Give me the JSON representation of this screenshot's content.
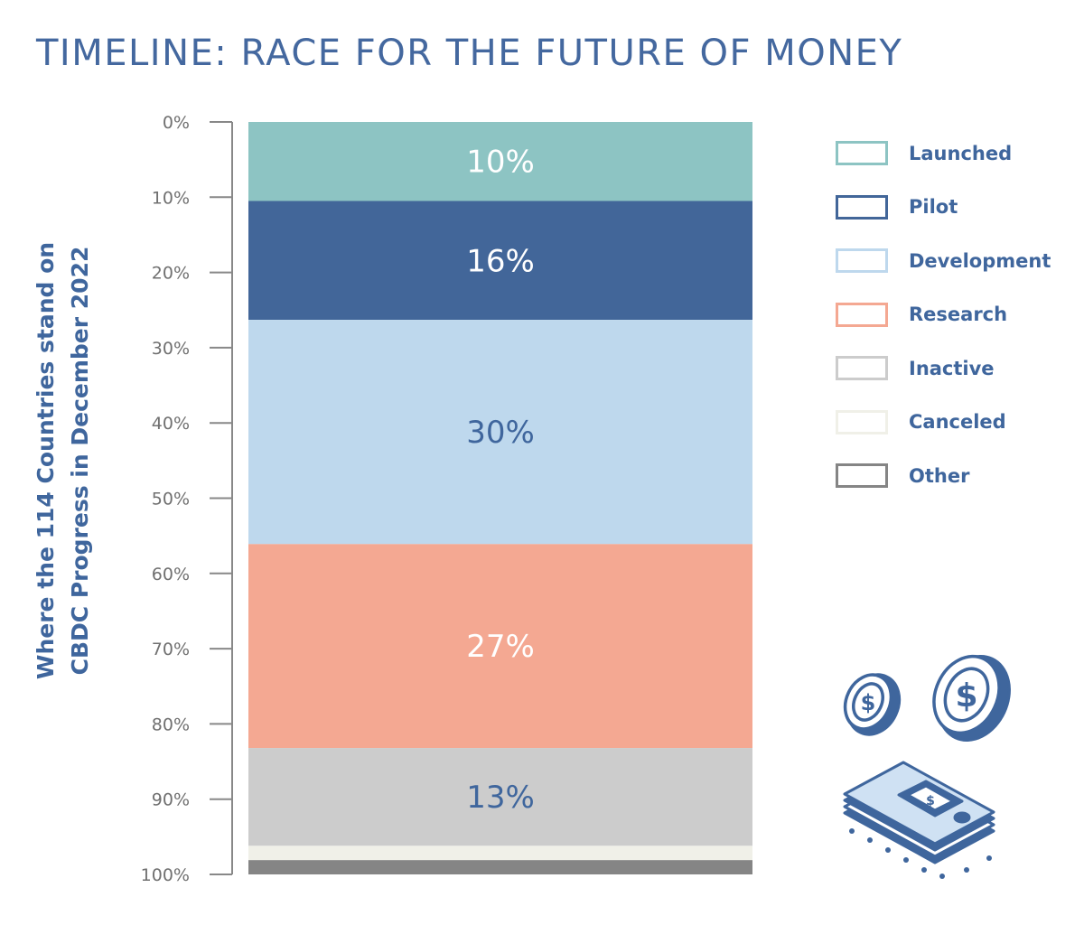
{
  "title": "TIMELINE: RACE FOR THE FUTURE OF MONEY",
  "ylabel_lines": [
    "Where the 114 Countries stand on",
    "CBDC Progress in December 2022"
  ],
  "chart_data": {
    "type": "bar",
    "subtype": "stacked-100",
    "title": "TIMELINE: RACE FOR THE FUTURE OF MONEY",
    "ylabel": "Where the 114 Countries stand on CBDC Progress in December 2022",
    "ylim": [
      0,
      100
    ],
    "inverted_axis": true,
    "ticks": [
      "0%",
      "10%",
      "20%",
      "30%",
      "40%",
      "50%",
      "60%",
      "70%",
      "80%",
      "90%",
      "100%"
    ],
    "series": [
      {
        "name": "Launched",
        "value": 10.5,
        "label": "10%",
        "color": "#8dc4c3",
        "text_color": "#ffffff"
      },
      {
        "name": "Pilot",
        "value": 15.8,
        "label": "16%",
        "color": "#426699",
        "text_color": "#ffffff"
      },
      {
        "name": "Development",
        "value": 29.8,
        "label": "30%",
        "color": "#bed8ed",
        "text_color": "#3f669d"
      },
      {
        "name": "Research",
        "value": 27.1,
        "label": "27%",
        "color": "#f4a892",
        "text_color": "#ffffff"
      },
      {
        "name": "Inactive",
        "value": 13.0,
        "label": "13%",
        "color": "#cccccc",
        "text_color": "#3f669d"
      },
      {
        "name": "Canceled",
        "value": 1.9,
        "label": "",
        "color": "#f0f0e8",
        "text_color": "#3f669d"
      },
      {
        "name": "Other",
        "value": 1.9,
        "label": "",
        "color": "#858585",
        "text_color": "#ffffff"
      }
    ]
  },
  "legend": {
    "items": [
      {
        "label": "Launched",
        "color": "#8dc4c3"
      },
      {
        "label": "Pilot",
        "color": "#426699"
      },
      {
        "label": "Development",
        "color": "#bed8ed"
      },
      {
        "label": "Research",
        "color": "#f4a892"
      },
      {
        "label": "Inactive",
        "color": "#cccccc"
      },
      {
        "label": "Canceled",
        "color": "#f0f0e8"
      },
      {
        "label": "Other",
        "color": "#858585"
      }
    ]
  },
  "icons": [
    "coin-small-icon",
    "coin-large-icon",
    "cash-stack-icon"
  ],
  "colors": {
    "accent": "#44689f",
    "axis": "#888888",
    "tick_text": "#707070"
  }
}
